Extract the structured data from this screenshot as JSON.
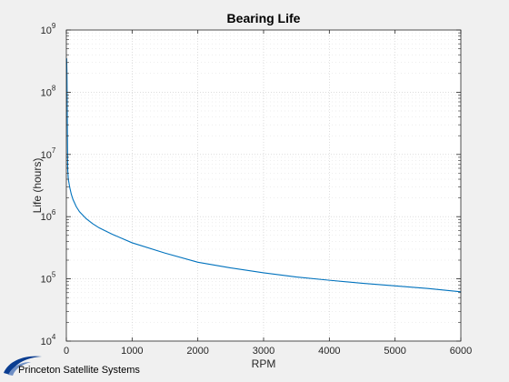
{
  "chart_data": {
    "type": "line",
    "title": "Bearing Life",
    "xlabel": "RPM",
    "ylabel": "Life (hours)",
    "xlim": [
      0,
      6000
    ],
    "ylim": [
      10000,
      1000000000
    ],
    "yscale": "log",
    "xticks": [
      "0",
      "1000",
      "2000",
      "3000",
      "4000",
      "5000",
      "6000"
    ],
    "yticks": [
      {
        "base": "10",
        "exp": "4"
      },
      {
        "base": "10",
        "exp": "5"
      },
      {
        "base": "10",
        "exp": "6"
      },
      {
        "base": "10",
        "exp": "7"
      },
      {
        "base": "10",
        "exp": "8"
      },
      {
        "base": "10",
        "exp": "9"
      }
    ],
    "grid": true,
    "minor_grid": true,
    "series": [
      {
        "color": "#0072bd",
        "x": [
          5,
          10,
          20,
          30,
          50,
          75,
          100,
          150,
          200,
          300,
          400,
          500,
          700,
          1000,
          1500,
          2000,
          2500,
          3000,
          3500,
          4000,
          4500,
          5000,
          5500,
          6000
        ],
        "y": [
          350000000,
          180000000,
          6000000,
          4000000,
          3000000,
          2300000,
          1900000,
          1450000,
          1200000,
          930000,
          770000,
          660000,
          520000,
          380000,
          260000,
          185000,
          150000,
          125000,
          107000,
          95000,
          85000,
          77000,
          70000,
          62000
        ]
      }
    ]
  },
  "footer": {
    "logo_text": "Princeton Satellite Systems",
    "logo_icon": "swoosh-icon",
    "logo_color": "#0a3d91"
  }
}
